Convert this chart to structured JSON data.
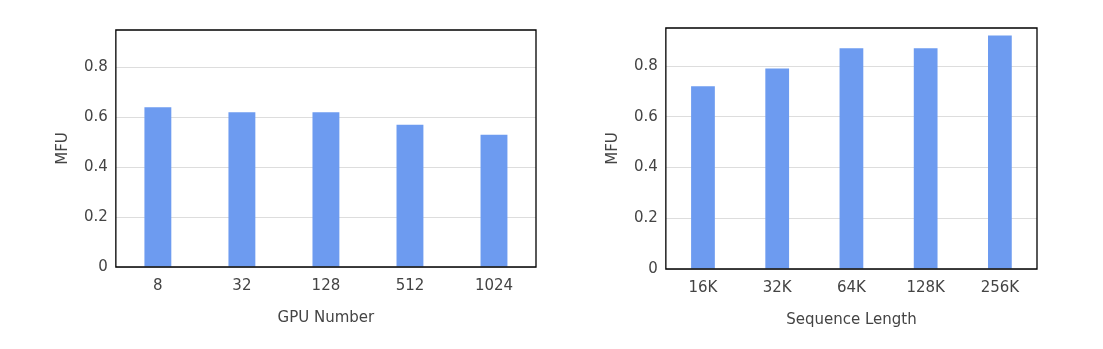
{
  "chart_data": [
    {
      "type": "bar",
      "xlabel": "GPU Number",
      "ylabel": "MFU",
      "categories": [
        "8",
        "32",
        "128",
        "512",
        "1024"
      ],
      "values": [
        0.64,
        0.62,
        0.62,
        0.57,
        0.53
      ],
      "color": "#6d9bf0",
      "ylim": [
        0,
        0.95
      ],
      "yticks": [
        0,
        0.2,
        0.4,
        0.6,
        0.8
      ],
      "grid": "y",
      "legend": false
    },
    {
      "type": "bar",
      "xlabel": "Sequence Length",
      "ylabel": "MFU",
      "categories": [
        "16K",
        "32K",
        "64K",
        "128K",
        "256K"
      ],
      "values": [
        0.72,
        0.79,
        0.87,
        0.87,
        0.92
      ],
      "color": "#6d9bf0",
      "ylim": [
        0,
        0.95
      ],
      "yticks": [
        0,
        0.2,
        0.4,
        0.6,
        0.8
      ],
      "grid": "y",
      "legend": false
    }
  ]
}
